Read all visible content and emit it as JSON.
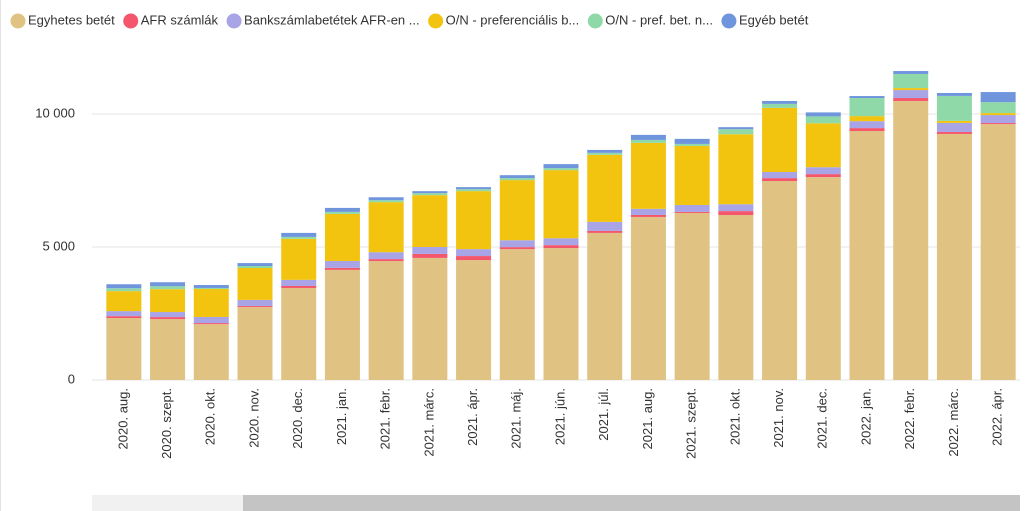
{
  "chart_data": {
    "type": "stacked_bar",
    "categories": [
      "2020. aug.",
      "2020. szept.",
      "2020. okt.",
      "2020. nov.",
      "2020. dec.",
      "2021. jan.",
      "2021. febr.",
      "2021. márc.",
      "2021. ápr.",
      "2021. máj.",
      "2021. jún.",
      "2021. júl.",
      "2021. aug.",
      "2021. szept.",
      "2021. okt.",
      "2021. nov.",
      "2021. dec.",
      "2022. jan.",
      "2022. febr.",
      "2022. márc.",
      "2022. ápr."
    ],
    "series": [
      {
        "name": "Egyhetes betét",
        "color": "#e0c283",
        "values": [
          2330,
          2290,
          2100,
          2740,
          3460,
          4140,
          4470,
          4590,
          4510,
          4920,
          4960,
          5530,
          6130,
          6280,
          6200,
          7480,
          7630,
          9360,
          10490,
          9250,
          9620
        ]
      },
      {
        "name": "AFR számlák",
        "color": "#f4566b",
        "values": [
          70,
          75,
          40,
          40,
          75,
          75,
          75,
          150,
          150,
          75,
          110,
          75,
          75,
          40,
          150,
          110,
          110,
          110,
          110,
          75,
          40
        ]
      },
      {
        "name": "Bankszámlabetétek AFR-en ...",
        "color": "#a9a4e6",
        "values": [
          190,
          190,
          230,
          230,
          230,
          260,
          260,
          260,
          260,
          260,
          260,
          340,
          230,
          260,
          260,
          230,
          260,
          260,
          300,
          340,
          300
        ]
      },
      {
        "name": "O/N - preferenciális b...",
        "color": "#f2c40f",
        "values": [
          750,
          860,
          1050,
          1200,
          1540,
          1770,
          1880,
          1950,
          2180,
          2260,
          2560,
          2520,
          2480,
          2220,
          2630,
          2410,
          1650,
          190,
          75,
          75,
          75
        ]
      },
      {
        "name": "O/N - pref. bet. n...",
        "color": "#8fd9a8",
        "values": [
          110,
          110,
          40,
          75,
          75,
          75,
          75,
          75,
          75,
          75,
          75,
          75,
          110,
          75,
          190,
          150,
          260,
          680,
          530,
          940,
          410
        ]
      },
      {
        "name": "Egyéb betét",
        "color": "#6f95dd",
        "values": [
          150,
          150,
          110,
          110,
          150,
          150,
          110,
          75,
          75,
          110,
          150,
          110,
          190,
          190,
          75,
          110,
          150,
          75,
          110,
          110,
          380
        ]
      }
    ],
    "ylim": [
      0,
      12500
    ],
    "yticks": [
      0,
      {
        "value": 5000,
        "label": "5 000"
      },
      {
        "value": 10000,
        "label": "10 000"
      }
    ],
    "grid": true
  }
}
